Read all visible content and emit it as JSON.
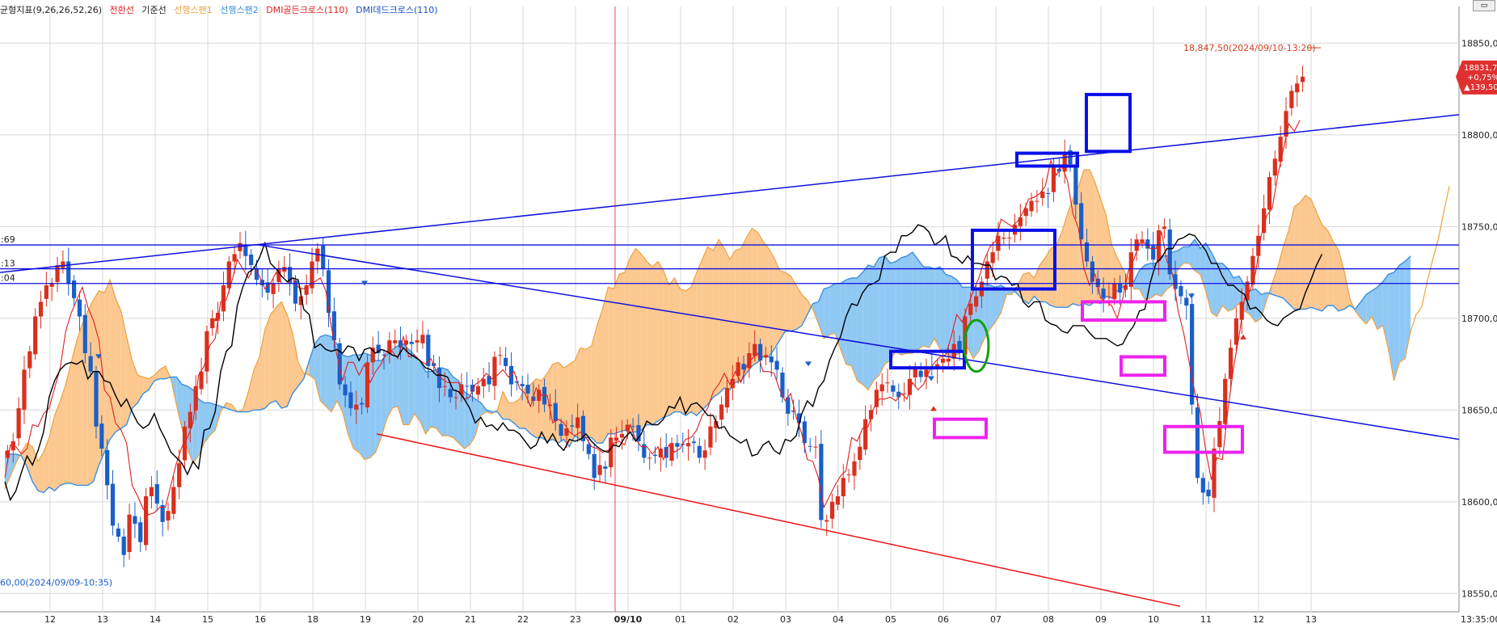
{
  "legend": {
    "indicator": "균형지표(9,26,26,52,26)",
    "conv_label": "전환선",
    "base_label": "기준선",
    "span1_label": "선행스팬1",
    "span2_label": "선행스팬2",
    "golden_label": "DMI골든크로스(110)",
    "dead_label": "DMI데드크로스(110)"
  },
  "colors": {
    "candle_up": "#d9301e",
    "candle_down": "#1a5fc8",
    "conv": "#e02020",
    "base": "#000000",
    "span1": "#f0a040",
    "span2": "#3a90e0",
    "cloud_up": "#fcc890",
    "cloud_down": "#90c8f4",
    "trend_blue": "#1010dd",
    "trend_red": "#ee1010",
    "box_blue": "#0a10e8",
    "box_magenta": "#ee22ee",
    "ellipse_green": "#10a010",
    "vline": "#ff4040",
    "grid": "#d8d8d8",
    "axis_text": "#222222",
    "price_badge": "#e03030"
  },
  "chart_data": {
    "type": "candlestick",
    "ylim": [
      18540,
      18870
    ],
    "y_ticks": [
      "18550,00",
      "18600,00",
      "18650,00",
      "18700,00",
      "18750,00",
      "18800,00",
      "18850,00"
    ],
    "x_ticks": [
      "12",
      "13",
      "14",
      "15",
      "16",
      "18",
      "19",
      "20",
      "21",
      "22",
      "23",
      "09/10",
      "01",
      "02",
      "03",
      "04",
      "05",
      "06",
      "07",
      "08",
      "09",
      "10",
      "11",
      "12",
      "13"
    ],
    "x_corner_label": "13:35:00",
    "left_edge_labels": [
      ":69",
      ":13",
      ":04"
    ],
    "high_annotation": "18,847,50(2024/09/10-13:20)",
    "low_annotation": "60,00(2024/09/09-10:35)",
    "current_price": {
      "value": "18831,75",
      "change_pct": "+0,75%",
      "change": "▲139,50"
    },
    "close_series": [
      18628,
      18633,
      18651,
      18672,
      18682,
      18701,
      18709,
      18718,
      18719,
      18729,
      18731,
      18719,
      18711,
      18701,
      18681,
      18671,
      18641,
      18629,
      18609,
      18587,
      18581,
      18571,
      18593,
      18588,
      18578,
      18603,
      18608,
      18599,
      18589,
      18595,
      18608,
      18621,
      18641,
      18649,
      18663,
      18671,
      18693,
      18700,
      18703,
      18718,
      18731,
      18735,
      18741,
      18734,
      18729,
      18721,
      18718,
      18714,
      18719,
      18727,
      18728,
      18719,
      18708,
      18712,
      18718,
      18731,
      18738,
      18727,
      18703,
      18688,
      18664,
      18658,
      18651,
      18653,
      18653,
      18676,
      18684,
      18681,
      18680,
      18688,
      18688,
      18684,
      18688,
      18686,
      18688,
      18691,
      18674,
      18674,
      18662,
      18663,
      18657,
      18657,
      18664,
      18663,
      18660,
      18663,
      18667,
      18664,
      18679,
      18680,
      18674,
      18664,
      18665,
      18663,
      18659,
      18655,
      18661,
      18653,
      18653,
      18644,
      18636,
      18640,
      18641,
      18646,
      18633,
      18626,
      18613,
      18620,
      18618,
      18635,
      18635,
      18637,
      18642,
      18641,
      18633,
      18624,
      18624,
      18625,
      18629,
      18624,
      18632,
      18630,
      18631,
      18632,
      18632,
      18624,
      18628,
      18641,
      18644,
      18653,
      18662,
      18667,
      18676,
      18672,
      18681,
      18686,
      18677,
      18680,
      18676,
      18672,
      18657,
      18648,
      18649,
      18643,
      18632,
      18630,
      18630,
      18590,
      18590,
      18600,
      18603,
      18613,
      18615,
      18622,
      18630,
      18645,
      18650,
      18661,
      18664,
      18665,
      18660,
      18657,
      18659,
      18667,
      18673,
      18668,
      18672,
      18673,
      18675,
      18678,
      18678,
      18686,
      18681,
      18701,
      18708,
      18712,
      18720,
      18731,
      18736,
      18745,
      18744,
      18744,
      18751,
      18755,
      18760,
      18764,
      18764,
      18769,
      18768,
      18783,
      18780,
      18790,
      18784,
      18762,
      18743,
      18731,
      18720,
      18717,
      18711,
      18712,
      18719,
      18714,
      18718,
      18736,
      18743,
      18743,
      18738,
      18732,
      18748,
      18750,
      18724,
      18716,
      18712,
      18707,
      18653,
      18613,
      18605,
      18603,
      18629,
      18644,
      18667,
      18684,
      18700,
      18709,
      18720,
      18734,
      18745,
      18760,
      18777,
      18787,
      18799,
      18813,
      18824,
      18828,
      18831.75
    ],
    "conv_series": [
      18613,
      18631,
      18630,
      18626,
      18629,
      18642,
      18641,
      18648,
      18651,
      18662,
      18673,
      18693,
      18703,
      18710,
      18717,
      18706,
      18699,
      18688,
      18661,
      18657,
      18643,
      18639,
      18632,
      18609,
      18603,
      18596,
      18593,
      18594,
      18597,
      18597,
      18609,
      18621,
      18630,
      18635,
      18643,
      18669,
      18674,
      18685,
      18689,
      18709,
      18710,
      18720,
      18732,
      18727,
      18722,
      18728,
      18723,
      18716,
      18719,
      18725,
      18719,
      18719,
      18722,
      18717,
      18716,
      18718,
      18720,
      18722,
      18715,
      18695,
      18680,
      18666,
      18676,
      18676,
      18669,
      18675,
      18665,
      18671,
      18675,
      18682,
      18682,
      18678,
      18690,
      18679,
      18680,
      18677,
      18675,
      18678,
      18671,
      18667,
      18665,
      18665,
      18665,
      18656,
      18657,
      18664,
      18666,
      18670,
      18667,
      18669,
      18672,
      18668,
      18671,
      18662,
      18659,
      18652,
      18662,
      18658,
      18658,
      18643,
      18645,
      18643,
      18638,
      18636,
      18638,
      18635,
      18630,
      18629,
      18627,
      18628,
      18632,
      18633,
      18631,
      18642,
      18634,
      18630,
      18630,
      18626,
      18630,
      18623,
      18631,
      18627,
      18629,
      18634,
      18635,
      18639,
      18647,
      18651,
      18660,
      18664,
      18670,
      18664,
      18671,
      18665,
      18674,
      18678,
      18681,
      18671,
      18671,
      18670,
      18661,
      18655,
      18659,
      18646,
      18637,
      18623,
      18622,
      18613,
      18597,
      18603,
      18609,
      18614,
      18617,
      18635,
      18633,
      18640,
      18641,
      18651,
      18656,
      18656,
      18657,
      18655,
      18659,
      18656,
      18665,
      18661,
      18664,
      18671,
      18676,
      18679,
      18680,
      18690,
      18702,
      18698,
      18707,
      18715,
      18722,
      18732,
      18739,
      18742,
      18754,
      18752,
      18750,
      18753,
      18758,
      18765,
      18766,
      18768,
      18772,
      18786,
      18778,
      18783,
      18775,
      18757,
      18749,
      18727,
      18718,
      18724,
      18711,
      18709,
      18707,
      18700,
      18711,
      18726,
      18732,
      18741,
      18741,
      18738,
      18738,
      18747,
      18731,
      18724,
      18704,
      18692,
      18676,
      18660,
      18649,
      18628,
      18612,
      18624,
      18623,
      18650,
      18673,
      18690,
      18711,
      18715,
      18725,
      18745,
      18756,
      18760,
      18778,
      18792,
      18806,
      18802,
      18808
    ],
    "base_series": [
      18611,
      18601,
      18606,
      18616,
      18625,
      18620,
      18628,
      18638,
      18657,
      18666,
      18672,
      18675,
      18676,
      18675,
      18677,
      18667,
      18671,
      18671,
      18666,
      18665,
      18658,
      18652,
      18656,
      18649,
      18643,
      18640,
      18642,
      18648,
      18640,
      18634,
      18627,
      18624,
      18621,
      18615,
      18622,
      18618,
      18639,
      18640,
      18649,
      18671,
      18682,
      18685,
      18707,
      18717,
      18725,
      18727,
      18733,
      18741,
      18730,
      18727,
      18723,
      18720,
      18722,
      18721,
      18705,
      18702,
      18684,
      18686,
      18683,
      18682,
      18683,
      18681,
      18685,
      18684,
      18677,
      18683,
      18684,
      18681,
      18683,
      18682,
      18680,
      18679,
      18684,
      18681,
      18679,
      18677,
      18673,
      18672,
      18669,
      18669,
      18668,
      18661,
      18660,
      18656,
      18651,
      18643,
      18646,
      18641,
      18642,
      18639,
      18643,
      18639,
      18639,
      18637,
      18633,
      18629,
      18631,
      18638,
      18632,
      18637,
      18631,
      18628,
      18634,
      18633,
      18634,
      18637,
      18633,
      18630,
      18628,
      18627,
      18631,
      18630,
      18635,
      18638,
      18633,
      18637,
      18644,
      18642,
      18642,
      18645,
      18652,
      18651,
      18657,
      18648,
      18653,
      18654,
      18651,
      18647,
      18647,
      18640,
      18641,
      18636,
      18634,
      18632,
      18634,
      18625,
      18626,
      18631,
      18633,
      18628,
      18626,
      18634,
      18633,
      18636,
      18648,
      18655,
      18652,
      18662,
      18666,
      18677,
      18684,
      18690,
      18701,
      18708,
      18707,
      18714,
      18718,
      18719,
      18721,
      18734,
      18736,
      18736,
      18745,
      18745,
      18747,
      18751,
      18750,
      18747,
      18740,
      18742,
      18745,
      18734,
      18733,
      18730,
      18734,
      18730,
      18730,
      18729,
      18729,
      18721,
      18723,
      18722,
      18718,
      18719,
      18709,
      18706,
      18709,
      18709,
      18699,
      18697,
      18696,
      18693,
      18692,
      18696,
      18696,
      18696,
      18692,
      18689,
      18689,
      18689,
      18687,
      18685,
      18686,
      18692,
      18696,
      18704,
      18705,
      18720,
      18730,
      18733,
      18738,
      18738,
      18743,
      18744,
      18746,
      18745,
      18741,
      18737,
      18730,
      18730,
      18723,
      18718,
      18718,
      18715,
      18713,
      18705,
      18706,
      18703,
      18699,
      18697,
      18696,
      18700,
      18702,
      18704,
      18705,
      18714,
      18721,
      18729,
      18735
    ],
    "span_a_series": [
      18607,
      18614,
      18621,
      18627,
      18632,
      18630,
      18622,
      18627,
      18635,
      18647,
      18655,
      18664,
      18676,
      18688,
      18697,
      18704,
      18710,
      18715,
      18714,
      18721,
      18711,
      18704,
      18690,
      18677,
      18669,
      18668,
      18667,
      18669,
      18672,
      18674,
      18667,
      18653,
      18640,
      18629,
      18621,
      18625,
      18632,
      18636,
      18639,
      18649,
      18654,
      18653,
      18649,
      18650,
      18660,
      18672,
      18679,
      18694,
      18702,
      18706,
      18709,
      18702,
      18692,
      18676,
      18670,
      18669,
      18667,
      18655,
      18652,
      18649,
      18655,
      18649,
      18637,
      18629,
      18627,
      18623,
      18624,
      18627,
      18635,
      18645,
      18651,
      18652,
      18642,
      18642,
      18648,
      18644,
      18637,
      18641,
      18640,
      18636,
      18636,
      18635,
      18632,
      18629,
      18631,
      18636,
      18647,
      18649,
      18648,
      18650,
      18660,
      18654,
      18654,
      18656,
      18662,
      18664,
      18667,
      18666,
      18670,
      18675,
      18676,
      18673,
      18675,
      18677,
      18684,
      18683,
      18685,
      18696,
      18705,
      18717,
      18716,
      18724,
      18725,
      18733,
      18738,
      18735,
      18731,
      18728,
      18731,
      18726,
      18718,
      18722,
      18716,
      18715,
      18717,
      18725,
      18732,
      18739,
      18737,
      18743,
      18738,
      18732,
      18737,
      18738,
      18744,
      18749,
      18747,
      18742,
      18738,
      18733,
      18726,
      18725,
      18723,
      18718,
      18713,
      18710,
      18705,
      18697,
      18689,
      18691,
      18692,
      18683,
      18675,
      18674,
      18666,
      18664,
      18661,
      18666,
      18669,
      18675,
      18677,
      18682,
      18680,
      18681,
      18681,
      18683,
      18685,
      18684,
      18689,
      18683,
      18681,
      18679,
      18680,
      18682,
      18684,
      18678,
      18682,
      18689,
      18694,
      18698,
      18703,
      18713,
      18713,
      18718,
      18724,
      18725,
      18722,
      18729,
      18733,
      18738,
      18740,
      18747,
      18757,
      18765,
      18772,
      18781,
      18781,
      18774,
      18765,
      18756,
      18740,
      18733,
      18727,
      18722,
      18716,
      18716,
      18710,
      18711,
      18713,
      18712,
      18716,
      18718,
      18727,
      18730,
      18730,
      18726,
      18724,
      18715,
      18703,
      18701,
      18707,
      18704,
      18705,
      18708,
      18704,
      18702,
      18698,
      18700,
      18710,
      18719,
      18728,
      18739,
      18748,
      18761,
      18763,
      18767,
      18765,
      18758,
      18751,
      18748,
      18742,
      18737,
      18726,
      18711,
      18704,
      18700,
      18697,
      18701,
      18694,
      18696,
      18683,
      18666,
      18676,
      18678,
      18693,
      18702,
      18706,
      18720,
      18732,
      18743,
      18758,
      18772
    ],
    "span_b_series": [
      18627,
      18626,
      18626,
      18625,
      18619,
      18611,
      18606,
      18605,
      18608,
      18606,
      18609,
      18610,
      18610,
      18609,
      18609,
      18609,
      18611,
      18620,
      18627,
      18634,
      18638,
      18640,
      18642,
      18651,
      18654,
      18659,
      18661,
      18666,
      18667,
      18667,
      18668,
      18668,
      18664,
      18663,
      18661,
      18656,
      18654,
      18654,
      18653,
      18652,
      18651,
      18650,
      18649,
      18649,
      18649,
      18650,
      18650,
      18651,
      18654,
      18655,
      18651,
      18652,
      18659,
      18663,
      18667,
      18677,
      18686,
      18690,
      18691,
      18690,
      18686,
      18680,
      18679,
      18680,
      18680,
      18681,
      18680,
      18677,
      18677,
      18680,
      18683,
      18685,
      18686,
      18683,
      18680,
      18677,
      18671,
      18671,
      18672,
      18673,
      18672,
      18668,
      18666,
      18660,
      18658,
      18656,
      18654,
      18650,
      18649,
      18649,
      18645,
      18645,
      18643,
      18640,
      18640,
      18637,
      18635,
      18635,
      18633,
      18634,
      18632,
      18634,
      18630,
      18636,
      18634,
      18635,
      18635,
      18632,
      18632,
      18637,
      18637,
      18638,
      18639,
      18638,
      18638,
      18639,
      18642,
      18642,
      18644,
      18646,
      18647,
      18649,
      18649,
      18647,
      18649,
      18647,
      18650,
      18653,
      18657,
      18659,
      18662,
      18661,
      18665,
      18666,
      18670,
      18674,
      18676,
      18679,
      18679,
      18683,
      18688,
      18693,
      18693,
      18694,
      18696,
      18702,
      18708,
      18709,
      18716,
      18717,
      18719,
      18719,
      18721,
      18722,
      18722,
      18725,
      18729,
      18728,
      18733,
      18734,
      18730,
      18731,
      18733,
      18734,
      18736,
      18732,
      18728,
      18728,
      18727,
      18728,
      18724,
      18723,
      18721,
      18717,
      18717,
      18717,
      18716,
      18719,
      18718,
      18717,
      18718,
      18716,
      18716,
      18713,
      18710,
      18708,
      18712,
      18709,
      18709,
      18707,
      18706,
      18706,
      18706,
      18708,
      18707,
      18708,
      18707,
      18709,
      18708,
      18712,
      18711,
      18715,
      18717,
      18719,
      18720,
      18726,
      18729,
      18730,
      18730,
      18734,
      18734,
      18736,
      18737,
      18739,
      18739,
      18743,
      18738,
      18741,
      18736,
      18730,
      18730,
      18727,
      18722,
      18723,
      18718,
      18715,
      18716,
      18713,
      18714,
      18713,
      18712,
      18711,
      18708,
      18705,
      18705,
      18705,
      18706,
      18705,
      18704,
      18707,
      18707,
      18704,
      18705,
      18707,
      18705,
      18709,
      18713,
      18715,
      18717,
      18720,
      18724,
      18725,
      18729,
      18731,
      18734
    ]
  }
}
